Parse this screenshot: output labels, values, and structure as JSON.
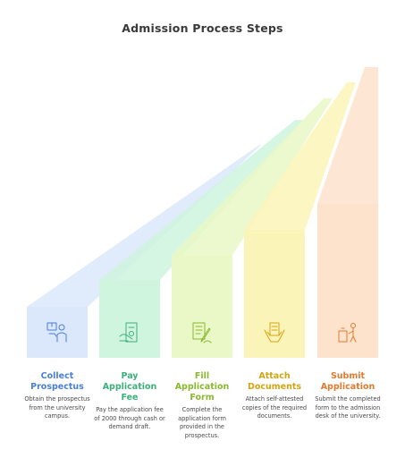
{
  "title": "Admission Process Steps",
  "steps": [
    {
      "title": "Collect Prospectus",
      "description": "Obtain the prospectus from the university campus.",
      "icon": "prospectus-collection-icon",
      "color": "#4a7fd6",
      "fill": "#dbe7fb"
    },
    {
      "title": "Pay Application Fee",
      "description": "Pay the application fee of 2000 through cash or demand draft.",
      "icon": "payment-receipt-icon",
      "color": "#3bb07a",
      "fill": "#cff5df"
    },
    {
      "title": "Fill Application Form",
      "description": "Complete the application form provided in the prospectus.",
      "icon": "form-writing-icon",
      "color": "#8ab82e",
      "fill": "#e9f8c6"
    },
    {
      "title": "Attach Documents",
      "description": "Attach self-attested copies of the required documents.",
      "icon": "document-attach-icon",
      "color": "#d4a412",
      "fill": "#fbf4b8"
    },
    {
      "title": "Submit Application",
      "description": "Submit the completed form to the admission desk of the university.",
      "icon": "submit-desk-icon",
      "color": "#e07a2f",
      "fill": "#fde2cc"
    }
  ]
}
